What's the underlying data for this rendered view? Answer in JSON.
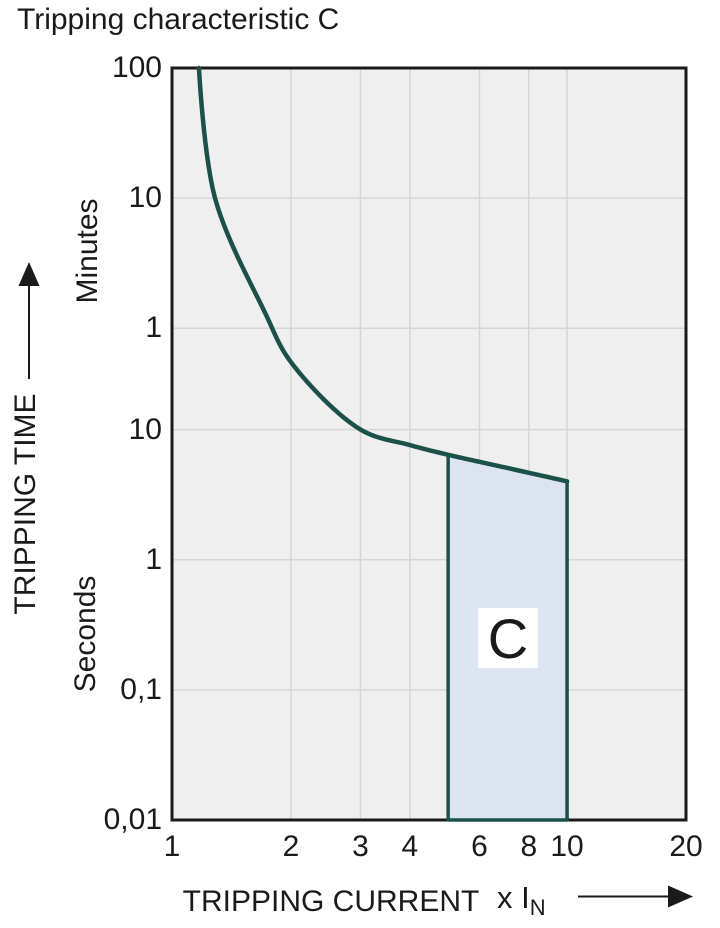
{
  "page": {
    "title": "Tripping characteristic C",
    "background": "#ffffff"
  },
  "y_axis": {
    "title": "TRIPPING TIME",
    "unit_top": "Minutes",
    "unit_bottom": "Seconds",
    "ticks": [
      {
        "label": "100",
        "seconds": 6000,
        "unit": "minutes"
      },
      {
        "label": "10",
        "seconds": 600,
        "unit": "minutes"
      },
      {
        "label": "1",
        "seconds": 60,
        "unit": "minutes"
      },
      {
        "label": "10",
        "seconds": 10,
        "unit": "seconds"
      },
      {
        "label": "1",
        "seconds": 1,
        "unit": "seconds"
      },
      {
        "label": "0,1",
        "seconds": 0.1,
        "unit": "seconds"
      },
      {
        "label": "0,01",
        "seconds": 0.01,
        "unit": "seconds"
      }
    ]
  },
  "x_axis": {
    "title": "TRIPPING CURRENT",
    "multiplier_prefix": "x I",
    "multiplier_sub": "N",
    "ticks": [
      {
        "label": "1",
        "value": 1
      },
      {
        "label": "2",
        "value": 2
      },
      {
        "label": "3",
        "value": 3
      },
      {
        "label": "4",
        "value": 4
      },
      {
        "label": "6",
        "value": 6
      },
      {
        "label": "8",
        "value": 8
      },
      {
        "label": "10",
        "value": 10
      },
      {
        "label": "20",
        "value": 20
      }
    ]
  },
  "chart_data": {
    "type": "line",
    "title": "Tripping characteristic C",
    "xlabel": "TRIPPING CURRENT (x IN)",
    "ylabel": "TRIPPING TIME",
    "x_scale": "log",
    "y_scale": "log",
    "xlim": [
      1,
      20
    ],
    "ylim_seconds": [
      0.01,
      6000
    ],
    "grid": true,
    "legend": "none",
    "x_gridlines": [
      2,
      3,
      4,
      6,
      8,
      10
    ],
    "y_gridlines_seconds": [
      600,
      60,
      10,
      1,
      0.1
    ],
    "series": [
      {
        "name": "C tripping characteristic curve",
        "x_times_in": [
          1.17,
          1.285,
          1.72,
          2.0,
          3.0,
          4.0,
          5.0,
          6.8,
          10.0
        ],
        "time_seconds": [
          6000,
          600,
          79,
          33,
          10,
          7.6,
          6.4,
          5.2,
          4.0
        ]
      }
    ],
    "region": {
      "label": "C",
      "x_range_times_in": [
        5,
        10
      ],
      "time_bottom_seconds": 0.01,
      "time_top_at_x5_seconds": 6.4,
      "time_top_at_x10_seconds": 4.0,
      "top_follows_curve": true
    }
  },
  "colors": {
    "curve": "#1c514b",
    "region_fill": "#dce4f2",
    "region_border": "#1c514b",
    "plot_background": "#efefef",
    "gridline": "#d6d6d9",
    "plot_border": "#1a1a1a",
    "text": "#1a1a1a"
  }
}
